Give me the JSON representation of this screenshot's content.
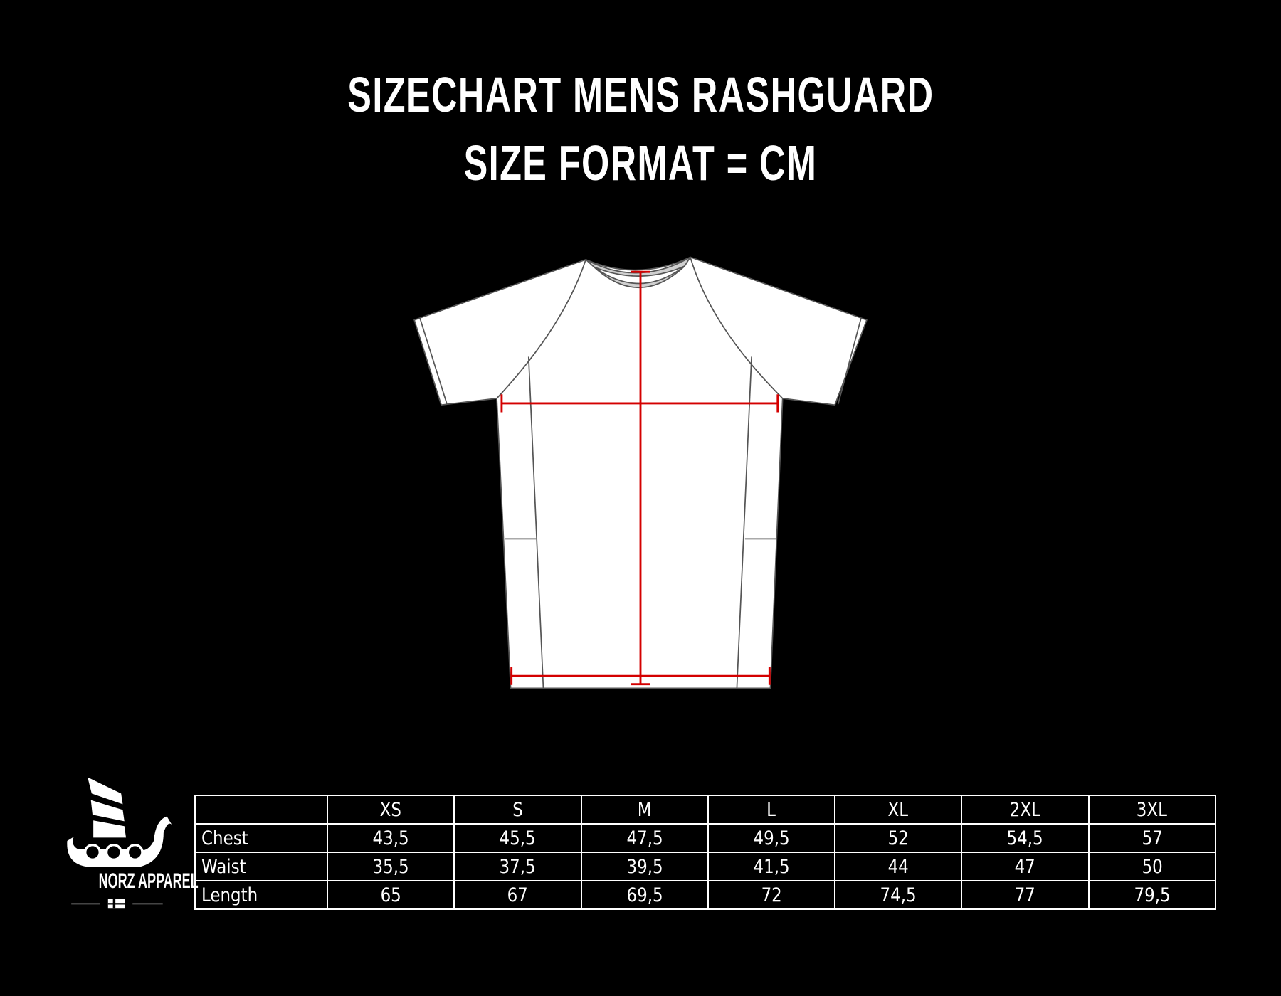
{
  "header": {
    "title_line1": "SIZECHART MENS RASHGUARD",
    "title_line2": "SIZE FORMAT = CM"
  },
  "logo": {
    "text": "NORZ APPAREL",
    "icon": "viking-ship-icon",
    "flag_icon": "norway-flag-icon"
  },
  "colors": {
    "background": "#000000",
    "measure_line": "#d40000",
    "shirt": "#ffffff"
  },
  "size_table": {
    "columns": [
      "",
      "XS",
      "S",
      "M",
      "L",
      "XL",
      "2XL",
      "3XL"
    ],
    "rows": [
      {
        "label": "Chest",
        "values": [
          "43,5",
          "45,5",
          "47,5",
          "49,5",
          "52",
          "54,5",
          "57"
        ]
      },
      {
        "label": "Waist",
        "values": [
          "35,5",
          "37,5",
          "39,5",
          "41,5",
          "44",
          "47",
          "50"
        ]
      },
      {
        "label": "Length",
        "values": [
          "65",
          "67",
          "69,5",
          "72",
          "74,5",
          "77",
          "79,5"
        ]
      }
    ]
  }
}
